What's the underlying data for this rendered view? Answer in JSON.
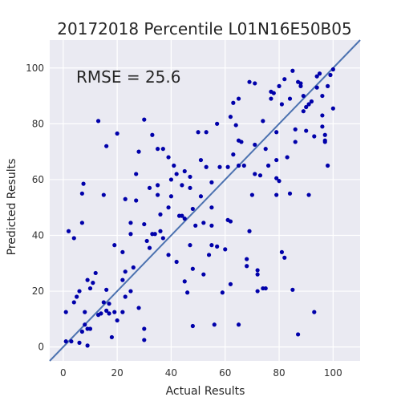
{
  "chart_data": {
    "type": "scatter",
    "title": "20172018 Percentile L01N16E50B05",
    "xlabel": "Actual Results",
    "ylabel": "Predicted Results",
    "annotation": "RMSE = 25.6",
    "xlim": [
      -5,
      110
    ],
    "ylim": [
      -5,
      110
    ],
    "xticks": [
      0,
      20,
      40,
      60,
      80,
      100
    ],
    "yticks": [
      0,
      20,
      40,
      60,
      80,
      100
    ],
    "grid": true,
    "reference_line": {
      "from": [
        -5,
        -5
      ],
      "to": [
        110,
        110
      ]
    },
    "colors": {
      "background": "#EAEAF2",
      "grid": "#FFFFFF",
      "points": "#0000AA",
      "line": "#4C72B0"
    },
    "points": [
      [
        1,
        2
      ],
      [
        1,
        12.5
      ],
      [
        2,
        41.5
      ],
      [
        3,
        2
      ],
      [
        4,
        39
      ],
      [
        4,
        16
      ],
      [
        5,
        18
      ],
      [
        6,
        20
      ],
      [
        6,
        1.5
      ],
      [
        7,
        5.5
      ],
      [
        7,
        44.5
      ],
      [
        7,
        55
      ],
      [
        7.5,
        58.5
      ],
      [
        8,
        8
      ],
      [
        8,
        12.5
      ],
      [
        9,
        0.5
      ],
      [
        9,
        6.5
      ],
      [
        9,
        24
      ],
      [
        10,
        6.5
      ],
      [
        10,
        21
      ],
      [
        11,
        23
      ],
      [
        12,
        26.5
      ],
      [
        13,
        11.5
      ],
      [
        13,
        81
      ],
      [
        14,
        12
      ],
      [
        15,
        54.5
      ],
      [
        15,
        16
      ],
      [
        16,
        13
      ],
      [
        16,
        20.5
      ],
      [
        16,
        72
      ],
      [
        17,
        15.5
      ],
      [
        17,
        12
      ],
      [
        18,
        3.5
      ],
      [
        19,
        12.5
      ],
      [
        19,
        36.5
      ],
      [
        20,
        9.5
      ],
      [
        20,
        76.5
      ],
      [
        22,
        34
      ],
      [
        22,
        12.5
      ],
      [
        22,
        24
      ],
      [
        23,
        27
      ],
      [
        23,
        18
      ],
      [
        23,
        53
      ],
      [
        25,
        20
      ],
      [
        25,
        40.5
      ],
      [
        25,
        44.5
      ],
      [
        26,
        28.5
      ],
      [
        27,
        62
      ],
      [
        27,
        52.5
      ],
      [
        28,
        14
      ],
      [
        28,
        70
      ],
      [
        30,
        6.5
      ],
      [
        30,
        2.5
      ],
      [
        30,
        44
      ],
      [
        30,
        81.5
      ],
      [
        31,
        38
      ],
      [
        32,
        35.5
      ],
      [
        32,
        57
      ],
      [
        33,
        40.5
      ],
      [
        33,
        76
      ],
      [
        34,
        40.5
      ],
      [
        35,
        71
      ],
      [
        35,
        58
      ],
      [
        35,
        54.5
      ],
      [
        36,
        41.5
      ],
      [
        36,
        47.5
      ],
      [
        37,
        71
      ],
      [
        37,
        39
      ],
      [
        39,
        68
      ],
      [
        39,
        50
      ],
      [
        39,
        33
      ],
      [
        40,
        60
      ],
      [
        40,
        54
      ],
      [
        41,
        65
      ],
      [
        42,
        30.5
      ],
      [
        42,
        62
      ],
      [
        43,
        47
      ],
      [
        44,
        47
      ],
      [
        44,
        58
      ],
      [
        45,
        63
      ],
      [
        45,
        46
      ],
      [
        45,
        23.5
      ],
      [
        46,
        19.5
      ],
      [
        47,
        61
      ],
      [
        47,
        57
      ],
      [
        47,
        36.5
      ],
      [
        48,
        49.5
      ],
      [
        48,
        7.5
      ],
      [
        48,
        28
      ],
      [
        49,
        43.5
      ],
      [
        50,
        77
      ],
      [
        51,
        67
      ],
      [
        51,
        54
      ],
      [
        52,
        26
      ],
      [
        52,
        44.5
      ],
      [
        53,
        64.5
      ],
      [
        53,
        77
      ],
      [
        54,
        33
      ],
      [
        55,
        43.5
      ],
      [
        55,
        59
      ],
      [
        55,
        50
      ],
      [
        55,
        36.5
      ],
      [
        56,
        8
      ],
      [
        57,
        36
      ],
      [
        57,
        80
      ],
      [
        58,
        64.5
      ],
      [
        59,
        19.5
      ],
      [
        60,
        35
      ],
      [
        61,
        45.5
      ],
      [
        61,
        64.5
      ],
      [
        62,
        82.5
      ],
      [
        62,
        22.5
      ],
      [
        62,
        45
      ],
      [
        63,
        87.5
      ],
      [
        63,
        69
      ],
      [
        64,
        79.5
      ],
      [
        65,
        74
      ],
      [
        65,
        8
      ],
      [
        65,
        89
      ],
      [
        65,
        65
      ],
      [
        66,
        73.5
      ],
      [
        67,
        65
      ],
      [
        68,
        31.5
      ],
      [
        68,
        29
      ],
      [
        69,
        41.5
      ],
      [
        69,
        95
      ],
      [
        70,
        54.5
      ],
      [
        71,
        72.5
      ],
      [
        71,
        62
      ],
      [
        71,
        94.5
      ],
      [
        72,
        26
      ],
      [
        72,
        27.5
      ],
      [
        72,
        20
      ],
      [
        73,
        61.5
      ],
      [
        74,
        81
      ],
      [
        74,
        21
      ],
      [
        75,
        71
      ],
      [
        75,
        21
      ],
      [
        76,
        65
      ],
      [
        77,
        89
      ],
      [
        77,
        91.5
      ],
      [
        78,
        91
      ],
      [
        79,
        60.5
      ],
      [
        79,
        54.5
      ],
      [
        79,
        67
      ],
      [
        79,
        77
      ],
      [
        80,
        59.5
      ],
      [
        80,
        93.5
      ],
      [
        81,
        87
      ],
      [
        81,
        34
      ],
      [
        82,
        96
      ],
      [
        82,
        32
      ],
      [
        83,
        68
      ],
      [
        84,
        89
      ],
      [
        84,
        55
      ],
      [
        85,
        99
      ],
      [
        85,
        20.5
      ],
      [
        86,
        73.5
      ],
      [
        86,
        78
      ],
      [
        87,
        95
      ],
      [
        87,
        4.5
      ],
      [
        88,
        94.5
      ],
      [
        88,
        93.5
      ],
      [
        89,
        90
      ],
      [
        89,
        84.5
      ],
      [
        90,
        77.5
      ],
      [
        90,
        86
      ],
      [
        91,
        87
      ],
      [
        91,
        54.5
      ],
      [
        92,
        88
      ],
      [
        93,
        12.5
      ],
      [
        93,
        75.5
      ],
      [
        94,
        93
      ],
      [
        94,
        97
      ],
      [
        95,
        98
      ],
      [
        96,
        90
      ],
      [
        96,
        79
      ],
      [
        96,
        83
      ],
      [
        97,
        76
      ],
      [
        97,
        73.5
      ],
      [
        97,
        74
      ],
      [
        98,
        65
      ],
      [
        98,
        93.5
      ],
      [
        99,
        97.5
      ],
      [
        100,
        99.5
      ],
      [
        100,
        85.5
      ]
    ]
  }
}
